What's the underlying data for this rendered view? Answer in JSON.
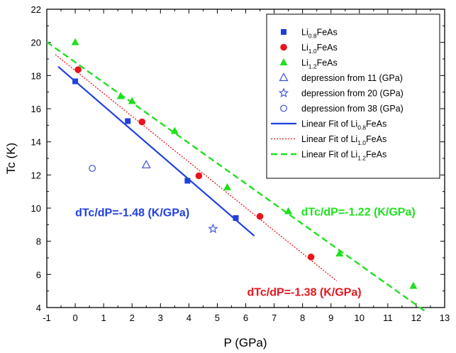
{
  "chart_data": {
    "type": "scatter",
    "xlabel": "P (GPa)",
    "ylabel": "Tc (K)",
    "xlim": [
      -1,
      13
    ],
    "ylim": [
      4,
      22
    ],
    "x_ticks": [
      "-1",
      "0",
      "1",
      "2",
      "3",
      "4",
      "5",
      "6",
      "7",
      "8",
      "9",
      "10",
      "11",
      "12",
      "13"
    ],
    "y_ticks": [
      "4",
      "6",
      "8",
      "10",
      "12",
      "14",
      "16",
      "18",
      "20",
      "22"
    ],
    "grid": false,
    "legend_position": "top-right",
    "series": [
      {
        "id": "li08",
        "legend": {
          "base": "Li",
          "sub": "0.8",
          "suffix": "FeAs"
        },
        "marker": "square",
        "color": "#1f3fe0",
        "points": [
          [
            0,
            17.65
          ],
          [
            1.85,
            15.25
          ],
          [
            3.95,
            11.65
          ],
          [
            5.65,
            9.4
          ]
        ]
      },
      {
        "id": "li10",
        "legend": {
          "base": "Li",
          "sub": "1.0",
          "suffix": "FeAs"
        },
        "marker": "circle",
        "color": "#e8141c",
        "points": [
          [
            0.1,
            18.35
          ],
          [
            2.35,
            15.2
          ],
          [
            4.35,
            11.95
          ],
          [
            6.5,
            9.5
          ],
          [
            8.3,
            7.05
          ]
        ]
      },
      {
        "id": "li12",
        "legend": {
          "base": "Li",
          "sub": "1.2",
          "suffix": "FeAs"
        },
        "marker": "triangle",
        "color": "#1fe01f",
        "points": [
          [
            0,
            20.0
          ],
          [
            1.6,
            16.75
          ],
          [
            2.0,
            16.45
          ],
          [
            3.5,
            14.65
          ],
          [
            5.35,
            11.25
          ],
          [
            7.5,
            9.8
          ],
          [
            9.3,
            7.25
          ],
          [
            11.9,
            5.3
          ]
        ]
      },
      {
        "id": "dep11",
        "legend": {
          "text": "depression from 11 (GPa)"
        },
        "marker": "open-triangle",
        "color": "#3a4fd8",
        "points": [
          [
            2.5,
            12.6
          ]
        ]
      },
      {
        "id": "dep20",
        "legend": {
          "text": "depression from 20 (GPa)"
        },
        "marker": "open-star",
        "color": "#3a4fd8",
        "points": [
          [
            4.85,
            8.75
          ]
        ]
      },
      {
        "id": "dep38",
        "legend": {
          "text": "depression from 38 (GPa)"
        },
        "marker": "open-circle",
        "color": "#3a4fd8",
        "points": [
          [
            0.6,
            12.4
          ]
        ]
      }
    ],
    "fits": [
      {
        "id": "fit08",
        "legend": {
          "prefix": "Linear Fit of ",
          "base": "Li",
          "sub": "0.8",
          "suffix": "FeAs"
        },
        "style": "solid",
        "color": "#1f3fe0",
        "x_range": [
          -0.6,
          6.3
        ],
        "slope": -1.48,
        "intercept": 17.65
      },
      {
        "id": "fit10",
        "legend": {
          "prefix": "Linear Fit of ",
          "base": "Li",
          "sub": "1.0",
          "suffix": "FeAs"
        },
        "style": "dotted",
        "color": "#e8141c",
        "x_range": [
          -0.7,
          9.2
        ],
        "slope": -1.38,
        "intercept": 18.3
      },
      {
        "id": "fit12",
        "legend": {
          "prefix": "Linear Fit of ",
          "base": "Li",
          "sub": "1.2",
          "suffix": "FeAs"
        },
        "style": "dashed",
        "color": "#1fe01f",
        "x_range": [
          -1,
          12.3
        ],
        "slope": -1.22,
        "intercept": 18.8
      }
    ],
    "annotations": [
      {
        "id": "annot-fit08",
        "text": "dTc/dP=-1.48 (K/GPa)",
        "color": "#1f3fe0",
        "x": 0,
        "y": 9.5
      },
      {
        "id": "annot-fit12",
        "text": "dTc/dP=-1.22 (K/GPa)",
        "color": "#1fe01f",
        "x": 7.95,
        "y": 9.55
      },
      {
        "id": "annot-fit10",
        "text": "dTc/dP=-1.38 (K/GPa)",
        "color": "#e8141c",
        "x": 6.05,
        "y": 4.7
      }
    ]
  }
}
